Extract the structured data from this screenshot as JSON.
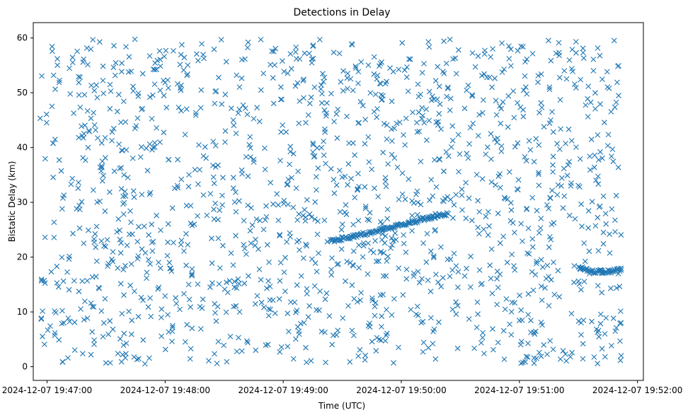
{
  "chart_data": {
    "type": "scatter",
    "title": "Detections in Delay",
    "xlabel": "Time (UTC)",
    "ylabel": "Bistatic Delay (km)",
    "marker": "x",
    "color": "#1f77b4",
    "xlim": [
      "2024-12-07 19:46:53",
      "2024-12-07 19:52:03"
    ],
    "ylim": [
      -2.5,
      62.8
    ],
    "x_ticks": [
      "2024-12-07 19:47:00",
      "2024-12-07 19:48:00",
      "2024-12-07 19:49:00",
      "2024-12-07 19:50:00",
      "2024-12-07 19:51:00",
      "2024-12-07 19:52:00"
    ],
    "y_ticks": [
      0,
      10,
      20,
      30,
      40,
      50,
      60
    ],
    "grid": false,
    "legend": false,
    "background_detections": {
      "description": "Uniformly scattered noise detections",
      "time_range": [
        "2024-12-07 19:46:56",
        "2024-12-07 19:51:52"
      ],
      "delay_range_km": [
        0.5,
        59.8
      ],
      "count": 1500
    },
    "track_segments": [
      {
        "points": [
          {
            "x": "2024-12-07 19:49:24",
            "y": 23.0
          },
          {
            "x": "2024-12-07 19:49:36",
            "y": 23.8
          },
          {
            "x": "2024-12-07 19:49:48",
            "y": 24.8
          },
          {
            "x": "2024-12-07 19:50:00",
            "y": 25.9
          },
          {
            "x": "2024-12-07 19:50:12",
            "y": 27.0
          },
          {
            "x": "2024-12-07 19:50:24",
            "y": 28.0
          }
        ]
      },
      {
        "points": [
          {
            "x": "2024-12-07 19:51:30",
            "y": 18.2
          },
          {
            "x": "2024-12-07 19:51:36",
            "y": 17.4
          },
          {
            "x": "2024-12-07 19:51:42",
            "y": 17.3
          },
          {
            "x": "2024-12-07 19:51:48",
            "y": 17.5
          },
          {
            "x": "2024-12-07 19:51:52",
            "y": 17.8
          }
        ]
      }
    ]
  }
}
